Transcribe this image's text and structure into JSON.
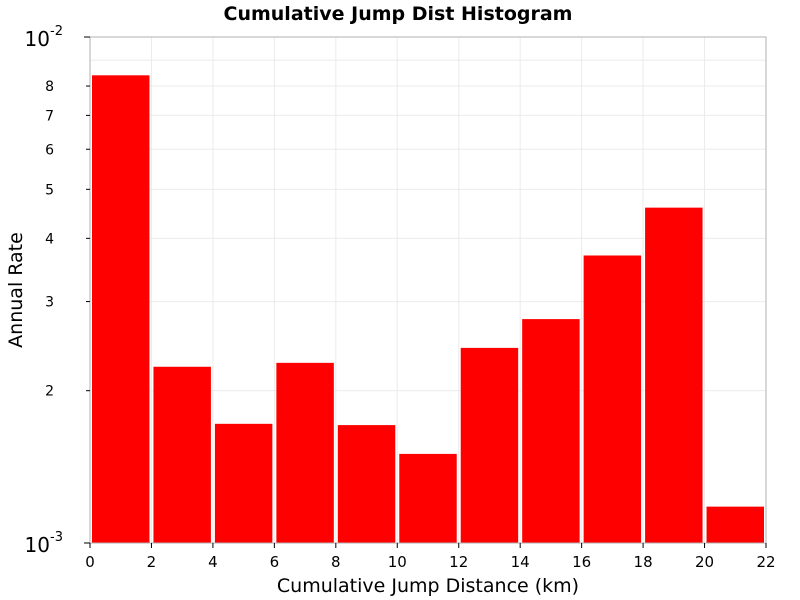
{
  "chart_data": {
    "type": "bar",
    "title": "Cumulative Jump Dist Histogram",
    "xlabel": "Cumulative Jump Distance (km)",
    "ylabel": "Annual Rate",
    "yscale": "log",
    "xlim": [
      0,
      22
    ],
    "ylim": [
      0.001,
      0.01
    ],
    "x_ticks": [
      "0",
      "2",
      "4",
      "6",
      "8",
      "10",
      "12",
      "14",
      "16",
      "18",
      "20",
      "22"
    ],
    "y_major_ticks": [
      {
        "value": 0.01,
        "base": "10",
        "exp": "-2"
      },
      {
        "value": 0.001,
        "base": "10",
        "exp": "-3"
      }
    ],
    "y_minor_ticks": [
      {
        "value": 0.002,
        "label": "2"
      },
      {
        "value": 0.003,
        "label": "3"
      },
      {
        "value": 0.004,
        "label": "4"
      },
      {
        "value": 0.005,
        "label": "5"
      },
      {
        "value": 0.006,
        "label": "6"
      },
      {
        "value": 0.007,
        "label": "7"
      },
      {
        "value": 0.008,
        "label": "8"
      }
    ],
    "grid": true,
    "bar_color": "#ff0000",
    "bins": [
      {
        "x0": 0,
        "x1": 2,
        "value": 0.0084
      },
      {
        "x0": 2,
        "x1": 4,
        "value": 0.00223
      },
      {
        "x0": 4,
        "x1": 6,
        "value": 0.00172
      },
      {
        "x0": 6,
        "x1": 8,
        "value": 0.00227
      },
      {
        "x0": 8,
        "x1": 10,
        "value": 0.00171
      },
      {
        "x0": 10,
        "x1": 12,
        "value": 0.0015
      },
      {
        "x0": 12,
        "x1": 14,
        "value": 0.00243
      },
      {
        "x0": 14,
        "x1": 16,
        "value": 0.00277
      },
      {
        "x0": 16,
        "x1": 18,
        "value": 0.0037
      },
      {
        "x0": 18,
        "x1": 20,
        "value": 0.0046
      },
      {
        "x0": 20,
        "x1": 22,
        "value": 0.00118
      }
    ]
  }
}
